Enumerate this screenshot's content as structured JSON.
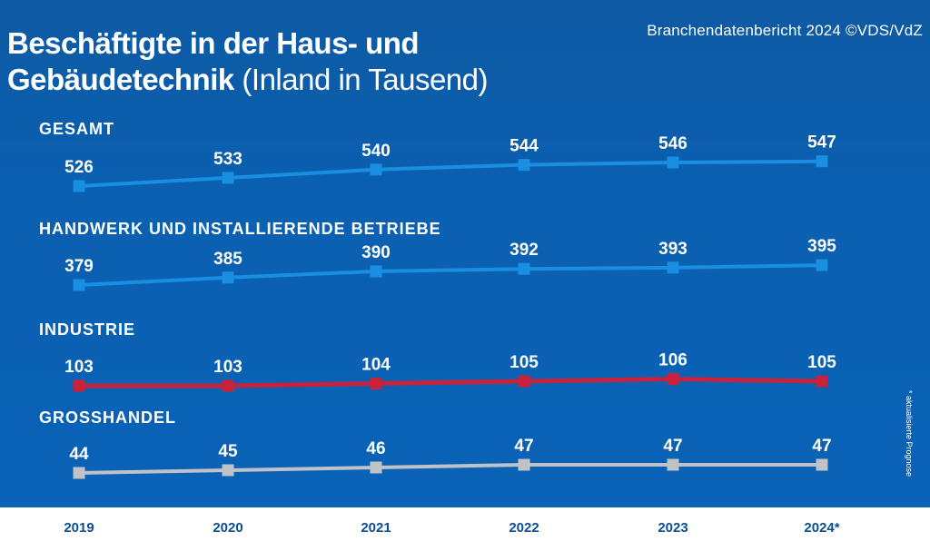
{
  "header": {
    "title_bold": "Beschäftigte in der Haus- und Gebäudetechnik",
    "title_light": "(Inland in Tausend)",
    "source": "Branchendatenbericht 2024 ©VDS/VdZ"
  },
  "footnote": "* aktualisierte Prognose",
  "colors": {
    "background": "#0a5fb0",
    "gesamt": "#1a8ee0",
    "handwerk": "#1a8ee0",
    "industrie": "#c8213b",
    "grosshandel": "#bfc2c6"
  },
  "chart_data": {
    "type": "line",
    "x": [
      "2019",
      "2020",
      "2021",
      "2022",
      "2023",
      "2024*"
    ],
    "series": [
      {
        "name": "GESAMT",
        "values": [
          526,
          533,
          540,
          544,
          546,
          547
        ]
      },
      {
        "name": "HANDWERK UND INSTALLIERENDE BETRIEBE",
        "values": [
          379,
          385,
          390,
          392,
          393,
          395
        ]
      },
      {
        "name": "INDUSTRIE",
        "values": [
          103,
          103,
          104,
          105,
          106,
          105
        ]
      },
      {
        "name": "GROSSHANDEL",
        "values": [
          44,
          45,
          46,
          47,
          47,
          47
        ]
      }
    ],
    "title": "Beschäftigte in der Haus- und Gebäudetechnik (Inland in Tausend)",
    "xlabel": "",
    "ylabel": "",
    "grid": false
  }
}
